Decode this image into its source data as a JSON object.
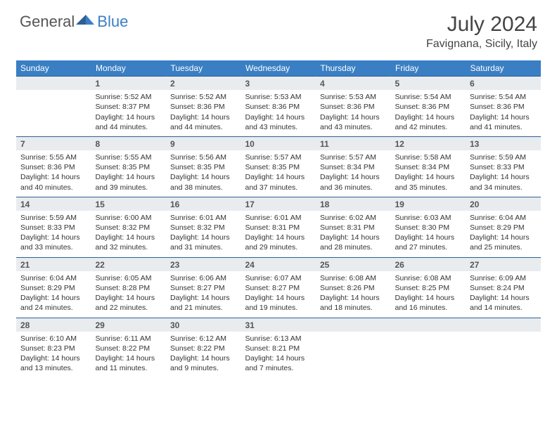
{
  "logo": {
    "general": "General",
    "blue": "Blue"
  },
  "title": "July 2024",
  "location": "Favignana, Sicily, Italy",
  "colors": {
    "header_bg": "#3a7fc4",
    "rule": "#2d5f95",
    "daynum_bg": "#e9ecef",
    "text": "#333333",
    "page_bg": "#ffffff"
  },
  "day_headers": [
    "Sunday",
    "Monday",
    "Tuesday",
    "Wednesday",
    "Thursday",
    "Friday",
    "Saturday"
  ],
  "weeks": [
    [
      null,
      {
        "n": "1",
        "sr": "5:52 AM",
        "ss": "8:37 PM",
        "dl": "14 hours and 44 minutes."
      },
      {
        "n": "2",
        "sr": "5:52 AM",
        "ss": "8:36 PM",
        "dl": "14 hours and 44 minutes."
      },
      {
        "n": "3",
        "sr": "5:53 AM",
        "ss": "8:36 PM",
        "dl": "14 hours and 43 minutes."
      },
      {
        "n": "4",
        "sr": "5:53 AM",
        "ss": "8:36 PM",
        "dl": "14 hours and 43 minutes."
      },
      {
        "n": "5",
        "sr": "5:54 AM",
        "ss": "8:36 PM",
        "dl": "14 hours and 42 minutes."
      },
      {
        "n": "6",
        "sr": "5:54 AM",
        "ss": "8:36 PM",
        "dl": "14 hours and 41 minutes."
      }
    ],
    [
      {
        "n": "7",
        "sr": "5:55 AM",
        "ss": "8:36 PM",
        "dl": "14 hours and 40 minutes."
      },
      {
        "n": "8",
        "sr": "5:55 AM",
        "ss": "8:35 PM",
        "dl": "14 hours and 39 minutes."
      },
      {
        "n": "9",
        "sr": "5:56 AM",
        "ss": "8:35 PM",
        "dl": "14 hours and 38 minutes."
      },
      {
        "n": "10",
        "sr": "5:57 AM",
        "ss": "8:35 PM",
        "dl": "14 hours and 37 minutes."
      },
      {
        "n": "11",
        "sr": "5:57 AM",
        "ss": "8:34 PM",
        "dl": "14 hours and 36 minutes."
      },
      {
        "n": "12",
        "sr": "5:58 AM",
        "ss": "8:34 PM",
        "dl": "14 hours and 35 minutes."
      },
      {
        "n": "13",
        "sr": "5:59 AM",
        "ss": "8:33 PM",
        "dl": "14 hours and 34 minutes."
      }
    ],
    [
      {
        "n": "14",
        "sr": "5:59 AM",
        "ss": "8:33 PM",
        "dl": "14 hours and 33 minutes."
      },
      {
        "n": "15",
        "sr": "6:00 AM",
        "ss": "8:32 PM",
        "dl": "14 hours and 32 minutes."
      },
      {
        "n": "16",
        "sr": "6:01 AM",
        "ss": "8:32 PM",
        "dl": "14 hours and 31 minutes."
      },
      {
        "n": "17",
        "sr": "6:01 AM",
        "ss": "8:31 PM",
        "dl": "14 hours and 29 minutes."
      },
      {
        "n": "18",
        "sr": "6:02 AM",
        "ss": "8:31 PM",
        "dl": "14 hours and 28 minutes."
      },
      {
        "n": "19",
        "sr": "6:03 AM",
        "ss": "8:30 PM",
        "dl": "14 hours and 27 minutes."
      },
      {
        "n": "20",
        "sr": "6:04 AM",
        "ss": "8:29 PM",
        "dl": "14 hours and 25 minutes."
      }
    ],
    [
      {
        "n": "21",
        "sr": "6:04 AM",
        "ss": "8:29 PM",
        "dl": "14 hours and 24 minutes."
      },
      {
        "n": "22",
        "sr": "6:05 AM",
        "ss": "8:28 PM",
        "dl": "14 hours and 22 minutes."
      },
      {
        "n": "23",
        "sr": "6:06 AM",
        "ss": "8:27 PM",
        "dl": "14 hours and 21 minutes."
      },
      {
        "n": "24",
        "sr": "6:07 AM",
        "ss": "8:27 PM",
        "dl": "14 hours and 19 minutes."
      },
      {
        "n": "25",
        "sr": "6:08 AM",
        "ss": "8:26 PM",
        "dl": "14 hours and 18 minutes."
      },
      {
        "n": "26",
        "sr": "6:08 AM",
        "ss": "8:25 PM",
        "dl": "14 hours and 16 minutes."
      },
      {
        "n": "27",
        "sr": "6:09 AM",
        "ss": "8:24 PM",
        "dl": "14 hours and 14 minutes."
      }
    ],
    [
      {
        "n": "28",
        "sr": "6:10 AM",
        "ss": "8:23 PM",
        "dl": "14 hours and 13 minutes."
      },
      {
        "n": "29",
        "sr": "6:11 AM",
        "ss": "8:22 PM",
        "dl": "14 hours and 11 minutes."
      },
      {
        "n": "30",
        "sr": "6:12 AM",
        "ss": "8:22 PM",
        "dl": "14 hours and 9 minutes."
      },
      {
        "n": "31",
        "sr": "6:13 AM",
        "ss": "8:21 PM",
        "dl": "14 hours and 7 minutes."
      },
      null,
      null,
      null
    ]
  ],
  "labels": {
    "sunrise": "Sunrise:",
    "sunset": "Sunset:",
    "daylight": "Daylight:"
  }
}
